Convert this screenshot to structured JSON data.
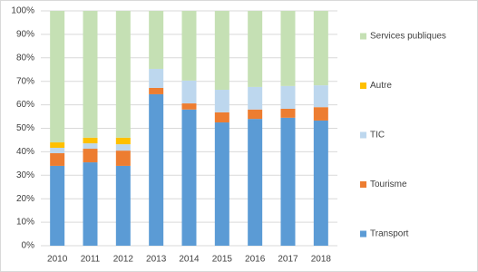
{
  "chart_data": {
    "type": "stacked_bar",
    "categories": [
      "2010",
      "2011",
      "2012",
      "2013",
      "2014",
      "2015",
      "2016",
      "2017",
      "2018"
    ],
    "series": [
      {
        "name": "Transport",
        "color": "#5b9bd5",
        "values": [
          34,
          35.5,
          34,
          64.5,
          58,
          52.5,
          54,
          54.5,
          53.3
        ]
      },
      {
        "name": "Tourisme",
        "color": "#ed7d31",
        "values": [
          5.4,
          5.8,
          6.5,
          2.7,
          2.6,
          4.3,
          4,
          3.8,
          5.7
        ]
      },
      {
        "name": "TIC",
        "color": "#bdd7ee",
        "values": [
          2.3,
          2.3,
          2.7,
          8.1,
          9.7,
          9.6,
          9.6,
          9.7,
          9.3
        ]
      },
      {
        "name": "Autre",
        "color": "#ffc000",
        "values": [
          2.3,
          2.4,
          2.8,
          0,
          0,
          0,
          0,
          0,
          0
        ]
      },
      {
        "name": "Services publiques",
        "color": "#c5e0b4",
        "values": [
          56,
          54,
          54,
          24.7,
          29.7,
          33.6,
          32.4,
          32,
          31.7
        ]
      }
    ],
    "ylim": [
      0,
      100
    ],
    "yticks": [
      {
        "value": 0,
        "label": "0%"
      },
      {
        "value": 10,
        "label": "10%"
      },
      {
        "value": 20,
        "label": "20%"
      },
      {
        "value": 30,
        "label": "30%"
      },
      {
        "value": 40,
        "label": "40%"
      },
      {
        "value": 50,
        "label": "50%"
      },
      {
        "value": 60,
        "label": "60%"
      },
      {
        "value": 70,
        "label": "70%"
      },
      {
        "value": 80,
        "label": "80%"
      },
      {
        "value": 90,
        "label": "90%"
      },
      {
        "value": 100,
        "label": "100%"
      }
    ],
    "grid": true,
    "legend": "right"
  }
}
